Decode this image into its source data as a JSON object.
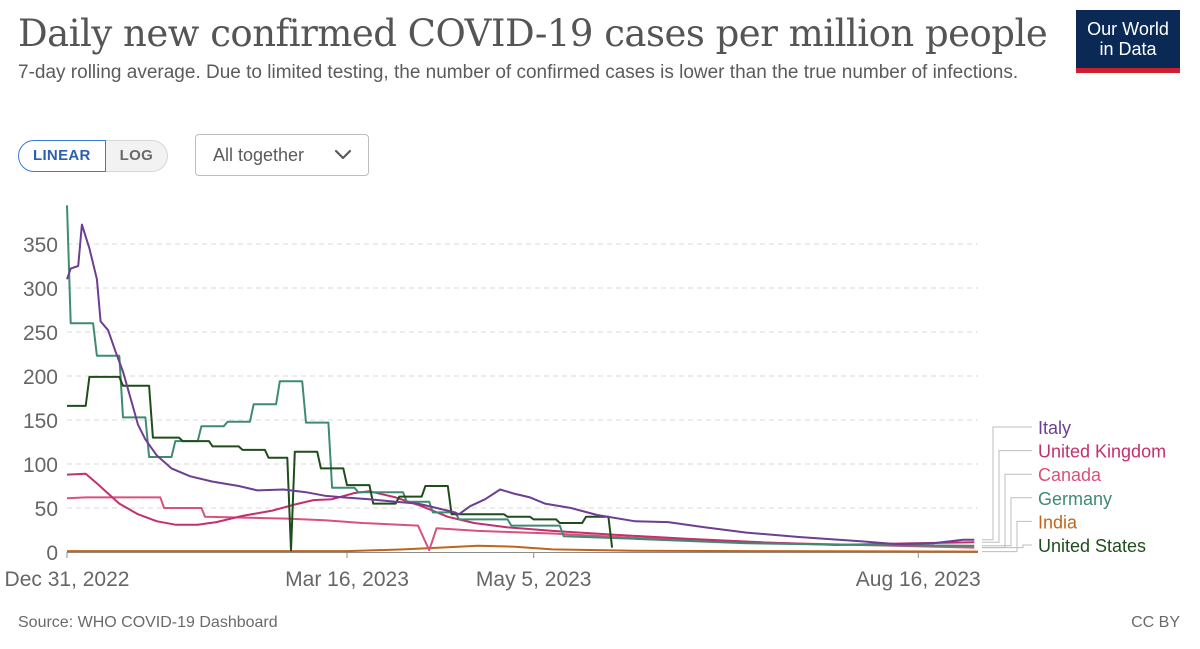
{
  "header": {
    "title": "Daily new confirmed COVID-19 cases per million people",
    "subtitle": "7-day rolling average. Due to limited testing, the number of confirmed cases is lower than the true number of infections.",
    "logo_line1": "Our World",
    "logo_line2": "in Data"
  },
  "controls": {
    "linear_label": "LINEAR",
    "log_label": "LOG",
    "selected_scale": "LINEAR",
    "dropdown_label": "All together",
    "dropdown_icon": "chevron-down-icon"
  },
  "footer": {
    "source": "Source: WHO COVID-19 Dashboard",
    "license": "CC BY"
  },
  "chart_data": {
    "type": "line",
    "y_ticks": [
      "0",
      "50",
      "100",
      "150",
      "200",
      "250",
      "300",
      "350"
    ],
    "ylim": [
      0,
      400
    ],
    "x_range": [
      "2022-12-31",
      "2023-09-01"
    ],
    "x_ticks": [
      {
        "date": "2022-12-31",
        "label": "Dec 31, 2022"
      },
      {
        "date": "2023-03-16",
        "label": "Mar 16, 2023"
      },
      {
        "date": "2023-05-05",
        "label": "May 5, 2023"
      },
      {
        "date": "2023-08-16",
        "label": "Aug 16, 2023"
      }
    ],
    "grid": "horizontal-dashed",
    "legend_position": "right",
    "series": [
      {
        "name": "India",
        "color": "#c0651b",
        "points": [
          [
            "2022-12-31",
            1
          ],
          [
            "2023-03-16",
            1
          ],
          [
            "2023-03-31",
            3
          ],
          [
            "2023-04-10",
            5
          ],
          [
            "2023-04-20",
            7
          ],
          [
            "2023-04-30",
            6
          ],
          [
            "2023-05-10",
            3
          ],
          [
            "2023-06-01",
            1.5
          ],
          [
            "2023-07-01",
            1
          ],
          [
            "2023-09-01",
            0.5
          ]
        ]
      },
      {
        "name": "Canada",
        "color": "#d8527a",
        "points": [
          [
            "2022-12-31",
            61
          ],
          [
            "2023-01-05",
            62
          ],
          [
            "2023-01-25",
            62
          ],
          [
            "2023-01-26",
            50
          ],
          [
            "2023-02-05",
            50
          ],
          [
            "2023-02-06",
            40
          ],
          [
            "2023-02-28",
            38
          ],
          [
            "2023-03-10",
            36
          ],
          [
            "2023-03-20",
            33
          ],
          [
            "2023-04-04",
            30
          ],
          [
            "2023-04-07",
            2
          ],
          [
            "2023-04-09",
            27
          ],
          [
            "2023-04-20",
            24
          ],
          [
            "2023-05-10",
            21
          ],
          [
            "2023-06-01",
            16
          ],
          [
            "2023-07-01",
            11
          ],
          [
            "2023-08-01",
            8
          ],
          [
            "2023-08-31",
            5
          ]
        ]
      },
      {
        "name": "United Kingdom",
        "color": "#c1306f",
        "points": [
          [
            "2022-12-31",
            88
          ],
          [
            "2023-01-05",
            89
          ],
          [
            "2023-01-08",
            78
          ],
          [
            "2023-01-14",
            55
          ],
          [
            "2023-01-19",
            43
          ],
          [
            "2023-01-24",
            35
          ],
          [
            "2023-01-29",
            31
          ],
          [
            "2023-02-04",
            31
          ],
          [
            "2023-02-09",
            34
          ],
          [
            "2023-02-16",
            41
          ],
          [
            "2023-02-24",
            47
          ],
          [
            "2023-03-02",
            54
          ],
          [
            "2023-03-07",
            59
          ],
          [
            "2023-03-12",
            60
          ],
          [
            "2023-03-18",
            67
          ],
          [
            "2023-03-22",
            69
          ],
          [
            "2023-03-29",
            62
          ],
          [
            "2023-04-05",
            52
          ],
          [
            "2023-04-12",
            40
          ],
          [
            "2023-04-19",
            33
          ],
          [
            "2023-04-28",
            28
          ],
          [
            "2023-05-10",
            24
          ],
          [
            "2023-05-25",
            20
          ],
          [
            "2023-06-15",
            15
          ],
          [
            "2023-07-05",
            11
          ],
          [
            "2023-07-25",
            8
          ],
          [
            "2023-08-15",
            10
          ],
          [
            "2023-08-31",
            11
          ]
        ]
      },
      {
        "name": "Germany",
        "color": "#3f8b72",
        "points": [
          [
            "2022-12-31",
            394
          ],
          [
            "2023-01-01",
            260
          ],
          [
            "2023-01-07",
            260
          ],
          [
            "2023-01-08",
            223
          ],
          [
            "2023-01-14",
            223
          ],
          [
            "2023-01-15",
            153
          ],
          [
            "2023-01-21",
            153
          ],
          [
            "2023-01-22",
            108
          ],
          [
            "2023-01-28",
            108
          ],
          [
            "2023-01-29",
            126
          ],
          [
            "2023-02-04",
            126
          ],
          [
            "2023-02-05",
            143
          ],
          [
            "2023-02-11",
            143
          ],
          [
            "2023-02-12",
            148
          ],
          [
            "2023-02-18",
            148
          ],
          [
            "2023-02-19",
            168
          ],
          [
            "2023-02-25",
            168
          ],
          [
            "2023-02-26",
            194
          ],
          [
            "2023-03-04",
            194
          ],
          [
            "2023-03-05",
            147
          ],
          [
            "2023-03-11",
            147
          ],
          [
            "2023-03-12",
            73
          ],
          [
            "2023-03-18",
            73
          ],
          [
            "2023-03-19",
            68
          ],
          [
            "2023-03-31",
            68
          ],
          [
            "2023-04-01",
            57
          ],
          [
            "2023-04-07",
            57
          ],
          [
            "2023-04-08",
            45
          ],
          [
            "2023-04-14",
            45
          ],
          [
            "2023-04-15",
            37
          ],
          [
            "2023-04-28",
            37
          ],
          [
            "2023-04-29",
            30
          ],
          [
            "2023-05-12",
            30
          ],
          [
            "2023-05-13",
            18
          ],
          [
            "2023-06-01",
            15
          ],
          [
            "2023-07-01",
            10
          ],
          [
            "2023-08-01",
            8
          ],
          [
            "2023-08-31",
            7
          ]
        ]
      },
      {
        "name": "United States",
        "color": "#1f4d1b",
        "points": [
          [
            "2022-12-31",
            166
          ],
          [
            "2023-01-05",
            166
          ],
          [
            "2023-01-06",
            199
          ],
          [
            "2023-01-14",
            199
          ],
          [
            "2023-01-15",
            189
          ],
          [
            "2023-01-22",
            189
          ],
          [
            "2023-01-23",
            130
          ],
          [
            "2023-01-30",
            130
          ],
          [
            "2023-01-31",
            126
          ],
          [
            "2023-02-07",
            126
          ],
          [
            "2023-02-08",
            120
          ],
          [
            "2023-02-15",
            120
          ],
          [
            "2023-02-16",
            116
          ],
          [
            "2023-02-22",
            116
          ],
          [
            "2023-02-23",
            107
          ],
          [
            "2023-02-28",
            107
          ],
          [
            "2023-03-01",
            2
          ],
          [
            "2023-03-02",
            114
          ],
          [
            "2023-03-08",
            114
          ],
          [
            "2023-03-09",
            95
          ],
          [
            "2023-03-15",
            95
          ],
          [
            "2023-03-16",
            76
          ],
          [
            "2023-03-22",
            76
          ],
          [
            "2023-03-23",
            55
          ],
          [
            "2023-03-29",
            55
          ],
          [
            "2023-03-30",
            63
          ],
          [
            "2023-04-05",
            63
          ],
          [
            "2023-04-06",
            75
          ],
          [
            "2023-04-12",
            75
          ],
          [
            "2023-04-13",
            43
          ],
          [
            "2023-04-27",
            43
          ],
          [
            "2023-04-28",
            40
          ],
          [
            "2023-05-04",
            40
          ],
          [
            "2023-05-05",
            37
          ],
          [
            "2023-05-11",
            37
          ],
          [
            "2023-05-12",
            33
          ],
          [
            "2023-05-18",
            33
          ],
          [
            "2023-05-19",
            40
          ],
          [
            "2023-05-25",
            40
          ],
          [
            "2023-05-26",
            5
          ]
        ]
      },
      {
        "name": "Italy",
        "color": "#6d3e91",
        "points": [
          [
            "2022-12-31",
            310
          ],
          [
            "2023-01-01",
            322
          ],
          [
            "2023-01-03",
            325
          ],
          [
            "2023-01-04",
            372
          ],
          [
            "2023-01-06",
            345
          ],
          [
            "2023-01-08",
            310
          ],
          [
            "2023-01-09",
            262
          ],
          [
            "2023-01-11",
            252
          ],
          [
            "2023-01-13",
            228
          ],
          [
            "2023-01-15",
            205
          ],
          [
            "2023-01-17",
            175
          ],
          [
            "2023-01-19",
            145
          ],
          [
            "2023-01-21",
            128
          ],
          [
            "2023-01-24",
            110
          ],
          [
            "2023-01-28",
            95
          ],
          [
            "2023-02-02",
            86
          ],
          [
            "2023-02-08",
            80
          ],
          [
            "2023-02-15",
            75
          ],
          [
            "2023-02-20",
            70
          ],
          [
            "2023-02-27",
            71
          ],
          [
            "2023-03-05",
            68
          ],
          [
            "2023-03-10",
            64
          ],
          [
            "2023-03-15",
            62
          ],
          [
            "2023-03-22",
            60
          ],
          [
            "2023-03-29",
            57
          ],
          [
            "2023-04-04",
            55
          ],
          [
            "2023-04-09",
            50
          ],
          [
            "2023-04-13",
            46
          ],
          [
            "2023-04-15",
            43
          ],
          [
            "2023-04-18",
            52
          ],
          [
            "2023-04-22",
            60
          ],
          [
            "2023-04-26",
            71
          ],
          [
            "2023-04-30",
            66
          ],
          [
            "2023-05-04",
            62
          ],
          [
            "2023-05-08",
            55
          ],
          [
            "2023-05-15",
            50
          ],
          [
            "2023-05-22",
            42
          ],
          [
            "2023-06-01",
            35
          ],
          [
            "2023-06-10",
            34
          ],
          [
            "2023-06-20",
            28
          ],
          [
            "2023-07-01",
            22
          ],
          [
            "2023-07-15",
            17
          ],
          [
            "2023-08-01",
            12
          ],
          [
            "2023-08-10",
            9
          ],
          [
            "2023-08-20",
            10
          ],
          [
            "2023-08-28",
            14
          ],
          [
            "2023-08-31",
            14
          ]
        ]
      }
    ],
    "legend_order": [
      "Italy",
      "United Kingdom",
      "Canada",
      "Germany",
      "India",
      "United States"
    ]
  }
}
